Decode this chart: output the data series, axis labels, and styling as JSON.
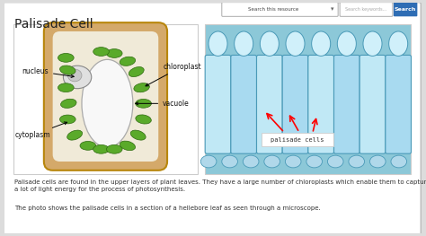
{
  "title": "Palisade Cell",
  "bg_outer": "#dcdcdc",
  "card_color": "#ffffff",
  "search_bar_color": "#2e6db4",
  "search_text": "Search this resource",
  "search_btn": "Search",
  "cell_wall_color": "#d4a96a",
  "cell_wall_edge": "#b8860b",
  "cell_bg": "#f0ead8",
  "nucleus_color": "#d0d0d0",
  "nucleus_outline": "#888888",
  "chloroplast_color": "#5aaa2a",
  "chloroplast_edge": "#2d6a0f",
  "photo_bg": "#8cc8d8",
  "photo_cell_face": "#b8e4f0",
  "photo_cell_edge": "#4a9ab8",
  "labels": {
    "nucleus": "nucleus",
    "chloroplast": "chloroplast",
    "vacuole": "vacuole",
    "cytoplasm": "cytoplasm"
  },
  "text_para1": "Palisade cells are found in the upper layers of plant leaves. They have a large number of chloroplasts which enable them to capture\na lot of light energy for the process of photosynthesis.",
  "text_para2": "The photo shows the palisade cells in a section of a hellebore leaf as seen through a microscope.",
  "palisade_cells_label": "palisade cells"
}
